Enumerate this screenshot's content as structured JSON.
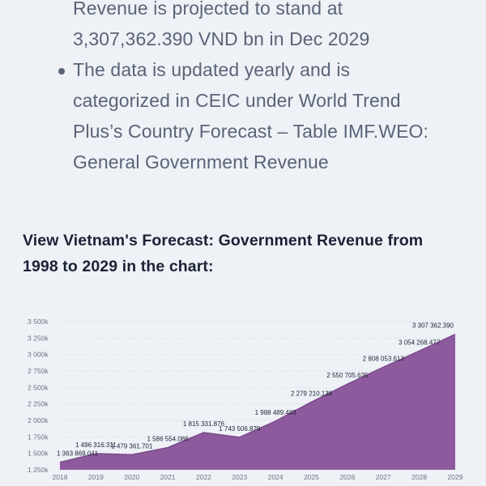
{
  "text": {
    "line1": "Revenue is projected to stand at",
    "line2": "3,307,362.390 VND bn in Dec 2029",
    "bullet2_line1": "The data is updated yearly and is",
    "bullet2_line2": "categorized in CEIC under World Trend",
    "bullet2_line3": "Plus’s Country Forecast – Table IMF.WEO:",
    "bullet2_line4": "General Government Revenue",
    "heading_line1": "View Vietnam's Forecast: Government Revenue from",
    "heading_line2": "1998 to 2029 in the chart:"
  },
  "colors": {
    "area_fill": "#8e5a9e",
    "area_line": "#7a4a8c",
    "text": "#5a6478",
    "heading": "#1b2236"
  },
  "chart_data": {
    "type": "area",
    "title": "",
    "xlabel": "",
    "ylabel": "",
    "x": [
      "2018",
      "2019",
      "2020",
      "2021",
      "2022",
      "2023",
      "2024",
      "2025",
      "2026",
      "2027",
      "2028",
      "2029"
    ],
    "values": [
      1363869.041,
      1496316.311,
      1479361.701,
      1586554.086,
      1815331.876,
      1743506.879,
      1988489.483,
      2279210.138,
      2550705.635,
      2808053.613,
      3054268.477,
      3307362.39
    ],
    "labels": [
      "1 363 869.041",
      "1 496 316.311",
      "1 479 361.701",
      "1 586 554.086",
      "1 815 331.876",
      "1 743 506.879",
      "1 988 489.483",
      "2 279 210.138",
      "2 550 705.635",
      "2 808 053.613",
      "3 054 268.477",
      "3 307 362.390"
    ],
    "ylim": [
      1250000,
      3500000
    ],
    "yticks": [
      1250000,
      1500000,
      1750000,
      2000000,
      2250000,
      2500000,
      2750000,
      3000000,
      3250000,
      3500000
    ],
    "ytick_labels": [
      "1 250k",
      "1 500k",
      "1 750k",
      "2 000k",
      "2 250k",
      "2 500k",
      "2 750k",
      "3 000k",
      "3 250k",
      "3 500k"
    ],
    "grid": true
  }
}
